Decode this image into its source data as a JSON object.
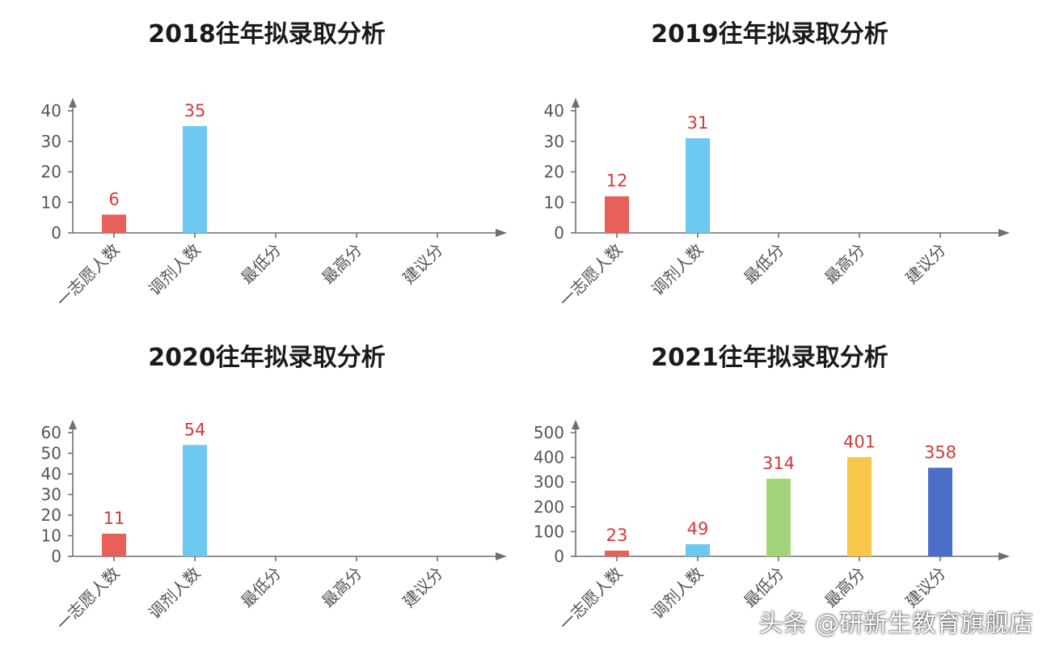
{
  "chart_data": [
    {
      "type": "bar",
      "title": "2018往年拟录取分析",
      "categories": [
        "一志愿人数",
        "调剂人数",
        "最低分",
        "最高分",
        "建议分"
      ],
      "values": [
        6,
        35,
        null,
        null,
        null
      ],
      "data_labels": [
        "6",
        "35",
        "",
        "",
        ""
      ],
      "ylim": [
        0,
        40
      ],
      "yticks": [
        0,
        10,
        20,
        30,
        40
      ],
      "grid": false
    },
    {
      "type": "bar",
      "title": "2019往年拟录取分析",
      "categories": [
        "一志愿人数",
        "调剂人数",
        "最低分",
        "最高分",
        "建议分"
      ],
      "values": [
        12,
        31,
        null,
        null,
        null
      ],
      "data_labels": [
        "12",
        "31",
        "",
        "",
        ""
      ],
      "ylim": [
        0,
        40
      ],
      "yticks": [
        0,
        10,
        20,
        30,
        40
      ],
      "grid": false
    },
    {
      "type": "bar",
      "title": "2020往年拟录取分析",
      "categories": [
        "一志愿人数",
        "调剂人数",
        "最低分",
        "最高分",
        "建议分"
      ],
      "values": [
        11,
        54,
        null,
        null,
        null
      ],
      "data_labels": [
        "11",
        "54",
        "",
        "",
        ""
      ],
      "ylim": [
        0,
        60
      ],
      "yticks": [
        0,
        10,
        20,
        30,
        40,
        50,
        60
      ],
      "grid": false
    },
    {
      "type": "bar",
      "title": "2021往年拟录取分析",
      "categories": [
        "一志愿人数",
        "调剂人数",
        "最低分",
        "最高分",
        "建议分"
      ],
      "values": [
        23,
        49,
        314,
        401,
        358
      ],
      "data_labels": [
        "23",
        "49",
        "314",
        "401",
        "358"
      ],
      "ylim": [
        0,
        500
      ],
      "yticks": [
        0,
        100,
        200,
        300,
        400,
        500
      ],
      "grid": false
    }
  ],
  "colors": {
    "categories": [
      "#e8605a",
      "#6cc8f0",
      "#a3d47a",
      "#f7c64a",
      "#4a6fc7"
    ],
    "data_label": "#d23a3a",
    "axis": "#6f6f6f",
    "title": "#1a1a1a"
  },
  "watermark": "头条 @研新生教育旗舰店"
}
